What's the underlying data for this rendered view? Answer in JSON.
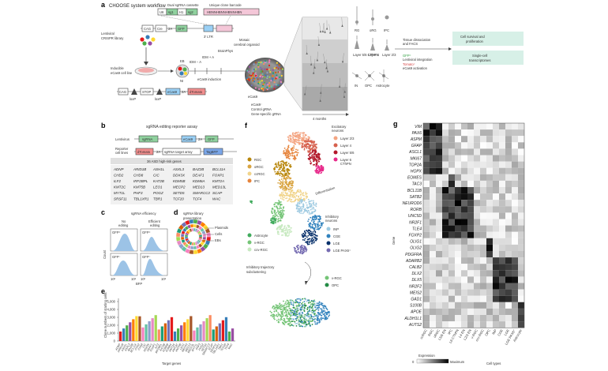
{
  "panel_a": {
    "label": "a",
    "title": "CHOOSE system workflow",
    "cassette_title": "Dual sgRNA cassette",
    "cassette_parts": [
      "U6",
      "sg1",
      "H1",
      "sg2"
    ],
    "barcode_title": "Unique clone barcode",
    "barcode_text": "HBNNHBNNHBNNHBN",
    "vector_parts": [
      "CAG",
      "Cre",
      "2A",
      "GFP"
    ],
    "ltr": "3′ LTR",
    "library_label": "Lentiviral CRISPR library",
    "cellline_label": "Inducible eCas9 cell line",
    "eb": "EB",
    "ni": "NI",
    "idm_a": "IDM − A",
    "idm_b": "IDM + A",
    "brainphys": "BrainPhys",
    "induction": "eCas9 induction",
    "organoid_label": "Mosaic cerebral organoid",
    "ecas9": "eCas9",
    "ecas9_minus": "eCas9⁻",
    "control": "Control gRNA",
    "genespecific": "Gene-specific gRNA",
    "duration": "4 months",
    "construct_parts": [
      "CAG",
      "STOP",
      "eCas9",
      "2A",
      "dTomato"
    ],
    "loxp": "loxP",
    "cell_types": [
      "RG",
      "oRG",
      "IPC",
      "Layer 5/6 CThPN",
      "Layer 4",
      "Layer 2/3",
      "IN",
      "OPC",
      "Astrocyte"
    ],
    "dissociation": "Tissue dissociation and FACS",
    "gfp_line": "GFP⁺",
    "gfp_text": "Lentiviral integration",
    "tom_line": "Tomato⁺",
    "tom_text": "eCas9 activation",
    "out1": "Cell survival and proliferation",
    "out2": "Single-cell transcriptomes"
  },
  "panel_b": {
    "label": "b",
    "title": "sgRNA editing reporter assay",
    "lentivirus": "Lentivirus",
    "reporter": "Reporter cell lines",
    "parts_top": [
      "sgRNA",
      "eCas9",
      "2A",
      "GFP"
    ],
    "parts_bot": [
      "dTomato",
      "2A",
      "sgRNA target array",
      "TagBFP"
    ],
    "genes_title": "36 ASD high-risk genes",
    "genes": [
      "ADNP",
      "ARID1B",
      "ASH1L",
      "ASXL3",
      "BAZ2B",
      "BCL11A",
      "CHD2",
      "CHD8",
      "CIC",
      "DDX3X",
      "DEAF1",
      "FOXP1",
      "ILF2",
      "IRF2BPL",
      "KAT2B",
      "KDM5B",
      "KDM6A",
      "KMT2A",
      "KMT2C",
      "KMT5B",
      "LEO1",
      "MECP2",
      "MED13",
      "MED13L",
      "MYT1L",
      "PHF3",
      "POGZ",
      "SETD5",
      "SMARCC2",
      "SCAP",
      "SRSF11",
      "TBL1XR1",
      "TBR1",
      "TCF20",
      "TCF4",
      "WAC"
    ]
  },
  "panel_c": {
    "label": "c",
    "title": "sgRNA efficiency",
    "col1": "No editing",
    "col2": "Efficient editing",
    "gfp_plus": "GFP⁺",
    "gfp_minus": "GFP⁻",
    "ylabel": "Count",
    "xlabel": "BFP",
    "ticks": [
      "10²",
      "10⁵",
      "10²",
      "10⁵"
    ]
  },
  "panel_d": {
    "label": "d",
    "title": "sgRNA library presentation",
    "rings": [
      "Plasmids",
      "Cells",
      "EBs"
    ],
    "colors": [
      "#e41a1c",
      "#377eb8",
      "#4daf4a",
      "#984ea3",
      "#ff7f00",
      "#ffd92f",
      "#a65628",
      "#f781bf",
      "#66c2a5",
      "#8da0cb",
      "#e78ac3",
      "#a6d854",
      "#fc8d62",
      "#1b9e77",
      "#d95f02",
      "#7570b3"
    ]
  },
  "panel_e": {
    "label": "e",
    "ylabel": "Clone numbers of starting cells",
    "xlabel": "Target genes",
    "yticks": [
      "0",
      "1,000",
      "2,000",
      "3,000",
      "4,000",
      "5,000"
    ]
  },
  "panel_f": {
    "label": "f",
    "excit_title": "Excitatory neurons",
    "excit": [
      {
        "name": "Layer 2/3",
        "color": "#f4a582"
      },
      {
        "name": "Layer 4",
        "color": "#d6604d"
      },
      {
        "name": "Layer 5/6",
        "color": "#b2182b"
      },
      {
        "name": "Layer 6 CThPN",
        "color": "#e7298a"
      }
    ],
    "progen": [
      {
        "name": "RGC",
        "color": "#b8860b"
      },
      {
        "name": "oRGC",
        "color": "#d9a441"
      },
      {
        "name": "ccRGC",
        "color": "#f1d48a"
      },
      {
        "name": "IPC",
        "color": "#e6843c"
      }
    ],
    "diff": "Differentiation",
    "inhib_title": "Inhibitory neurons",
    "inhib": [
      {
        "name": "INP",
        "color": "#9ecae1"
      },
      {
        "name": "CGE",
        "color": "#3182bd"
      },
      {
        "name": "LGE",
        "color": "#08306b"
      },
      {
        "name": "LGE PAX6⁺",
        "color": "#756bb1"
      }
    ],
    "glia": [
      {
        "name": "Astrocyte",
        "color": "#41ab5d"
      },
      {
        "name": "v-RGC",
        "color": "#74c476"
      },
      {
        "name": "ccv-RGC",
        "color": "#c7e9c0"
      }
    ],
    "sub_title": "Inhibitory trajectory subclustering",
    "sub": [
      {
        "name": "v-RGC",
        "color": "#74c476"
      },
      {
        "name": "OPC",
        "color": "#238b45"
      }
    ]
  },
  "panel_g": {
    "label": "g",
    "ylabel": "Gene",
    "xlabel": "Cell types",
    "legend_title": "Expression",
    "legend_min": "0",
    "legend_max": "Maximum",
    "genes": [
      "VIM",
      "PAX6",
      "ASPM",
      "GFAP",
      "ASCL1",
      "MKI67",
      "TOP2A",
      "HOPX",
      "EOMES",
      "TAC3",
      "BCL11B",
      "SATB2",
      "NEUROD6",
      "RORB",
      "UNC5D",
      "NR2F1",
      "TLE4",
      "FOXP2",
      "OLIG1",
      "OLIG2",
      "PDGFRA",
      "ADARB2",
      "CALB2",
      "DLX2",
      "DLX5",
      "NR2F2",
      "MEIS2",
      "GAD1",
      "S100B",
      "APOE",
      "ALDH1L1",
      "AUTS2"
    ],
    "celltypes": [
      "ccRGC",
      "RGC",
      "oRGC",
      "L5/6 EN",
      "IPC",
      "L6 CThPN",
      "L4 EN",
      "L2/3 EN",
      "v-RGC",
      "ccv-RGC",
      "OPC",
      "INP",
      "CGE",
      "LGE",
      "LGE PAX6⁺",
      "Astrocyte"
    ]
  }
}
